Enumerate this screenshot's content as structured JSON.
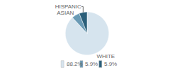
{
  "chart_data": {
    "type": "pie",
    "categories": [
      "WHITE",
      "ASIAN",
      "HISPANIC"
    ],
    "values": [
      88.2,
      5.9,
      5.9
    ],
    "value_labels": [
      "88.2%",
      "5.9%",
      "5.9%"
    ],
    "colors": [
      "#d6e4ee",
      "#6a9ab5",
      "#2b5f7a"
    ]
  }
}
